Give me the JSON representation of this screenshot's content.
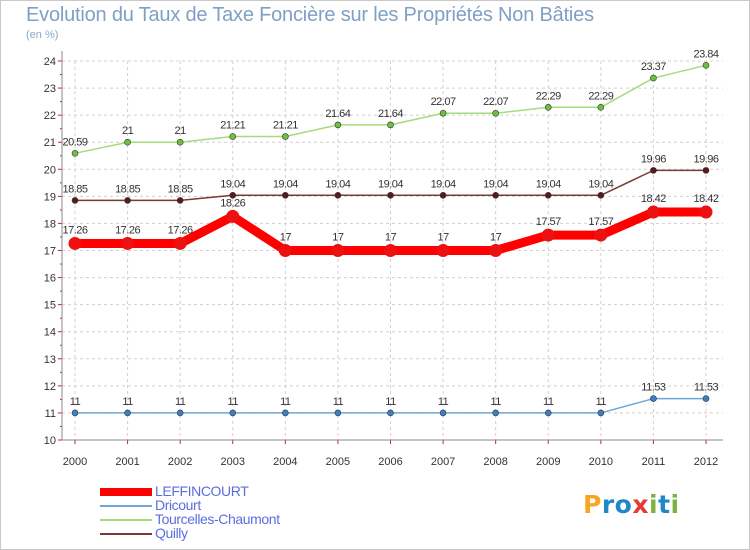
{
  "chart_data": {
    "type": "line",
    "title": "Evolution du Taux de Taxe Foncière sur les Propriétés Non Bâties",
    "ylabel": "(en %)",
    "xlabel": "",
    "categories": [
      "2000",
      "2001",
      "2002",
      "2003",
      "2004",
      "2005",
      "2006",
      "2007",
      "2008",
      "2009",
      "2010",
      "2011",
      "2012"
    ],
    "ylim": [
      10,
      24
    ],
    "yticks": [
      10,
      11,
      12,
      13,
      14,
      15,
      16,
      17,
      18,
      19,
      20,
      21,
      22,
      23,
      24
    ],
    "grid": true,
    "legend_position": "bottom-left",
    "series": [
      {
        "name": "LEFFINCOURT",
        "color": "#ff0000",
        "marker": "#ee1111",
        "emphasis": true,
        "values": [
          17.26,
          17.26,
          17.26,
          18.26,
          17,
          17,
          17,
          17,
          17,
          17.57,
          17.57,
          18.42,
          18.42
        ],
        "labels": [
          "17.26",
          "17.26",
          "17.26",
          "18.26",
          "17",
          "17",
          "17",
          "17",
          "17",
          "17.57",
          "17.57",
          "18.42",
          "18.42"
        ]
      },
      {
        "name": "Dricourt",
        "color": "#6fa8d8",
        "marker": "#3d7fc4",
        "emphasis": false,
        "values": [
          11,
          11,
          11,
          11,
          11,
          11,
          11,
          11,
          11,
          11,
          11,
          11.53,
          11.53
        ],
        "labels": [
          "11",
          "11",
          "11",
          "11",
          "11",
          "11",
          "11",
          "11",
          "11",
          "11",
          "11",
          "11.53",
          "11.53"
        ]
      },
      {
        "name": "Tourcelles-Chaumont",
        "color": "#a4dc7c",
        "marker": "#6cc23c",
        "emphasis": false,
        "values": [
          20.59,
          21,
          21,
          21.21,
          21.21,
          21.64,
          21.64,
          22.07,
          22.07,
          22.29,
          22.29,
          23.37,
          23.84
        ],
        "labels": [
          "20.59",
          "21",
          "21",
          "21.21",
          "21.21",
          "21.64",
          "21.64",
          "22.07",
          "22.07",
          "22.29",
          "22.29",
          "23.37",
          "23.84"
        ]
      },
      {
        "name": "Quilly",
        "color": "#7a3838",
        "marker": "#5a1a1a",
        "emphasis": false,
        "values": [
          18.85,
          18.85,
          18.85,
          19.04,
          19.04,
          19.04,
          19.04,
          19.04,
          19.04,
          19.04,
          19.04,
          19.96,
          19.96
        ],
        "labels": [
          "18.85",
          "18.85",
          "18.85",
          "19.04",
          "19.04",
          "19.04",
          "19.04",
          "19.04",
          "19.04",
          "19.04",
          "19.04",
          "19.96",
          "19.96"
        ]
      }
    ]
  },
  "logo": {
    "letters": [
      "P",
      "r",
      "o",
      "x",
      "i",
      "t",
      "i"
    ],
    "colors": [
      "#f6a621",
      "#1e88c8",
      "#1e88c8",
      "#e53935",
      "#7cb342",
      "#1e88c8",
      "#7cb342"
    ]
  }
}
